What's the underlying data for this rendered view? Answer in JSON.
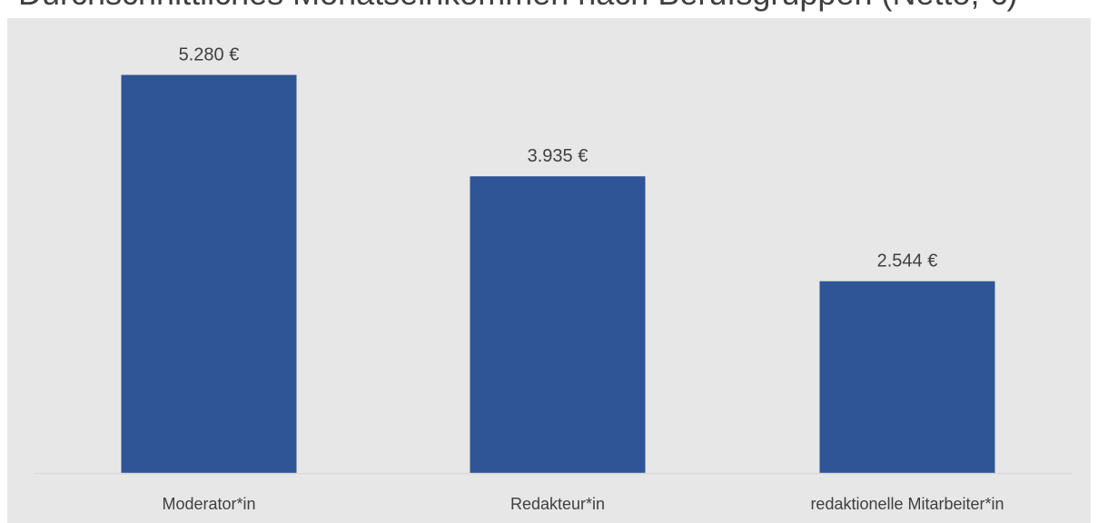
{
  "chart_data": {
    "type": "bar",
    "title": "Durchschnittliches Monatseinkommen nach Berufsgruppen (Netto, €)",
    "xlabel": "",
    "ylabel": "",
    "categories": [
      "Moderator*in",
      "Redakteur*in",
      "redaktionelle Mitarbeiter*in"
    ],
    "values": [
      5280,
      3935,
      2544
    ],
    "value_labels": [
      "5.280 €",
      "3.935 €",
      "2.544 €"
    ],
    "ylim": [
      0,
      5900
    ],
    "grid": false,
    "legend": "none",
    "colors": {
      "bar": "#2f5597",
      "plot_background": "#e7e7e7",
      "text": "#404040",
      "axis": "#d9d9d9"
    }
  }
}
